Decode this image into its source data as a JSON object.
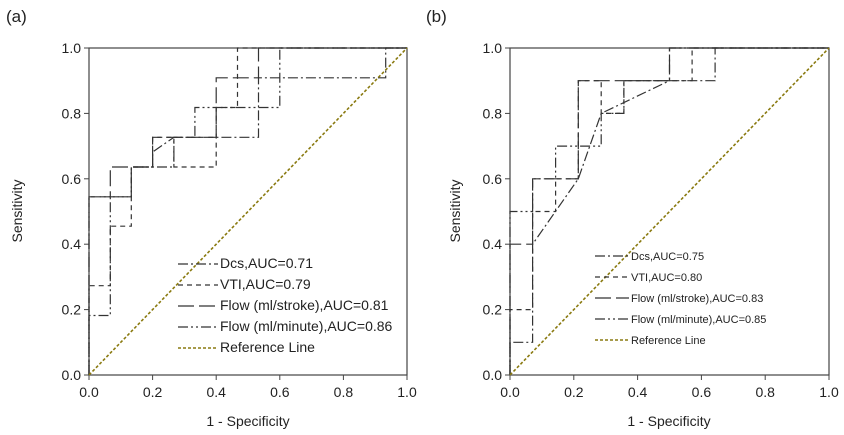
{
  "figure": {
    "panels": [
      {
        "label": "(a)",
        "xlabel": "1 - Specificity",
        "ylabel": "Sensitivity"
      },
      {
        "label": "(b)",
        "xlabel": "1 - Specificity",
        "ylabel": "Sensitivity"
      }
    ]
  },
  "chart_data": [
    {
      "type": "line",
      "panel": "(a)",
      "xlabel": "1 - Specificity",
      "ylabel": "Sensitivity",
      "xlim": [
        0,
        1
      ],
      "ylim": [
        0,
        1
      ],
      "xticks": [
        "0.0",
        "0.2",
        "0.4",
        "0.6",
        "0.8",
        "1.0"
      ],
      "yticks": [
        "0.0",
        "0.2",
        "0.4",
        "0.6",
        "0.8",
        "1.0"
      ],
      "grid": false,
      "legend_position": "bottom-right",
      "series": [
        {
          "name": "Dcs,AUC=0.71",
          "style": "dashdot",
          "color": "#333333",
          "x": [
            0,
            0,
            0.133,
            0.133,
            0.2,
            0.2,
            0.267,
            0.533,
            0.533,
            0.933,
            0.933,
            1
          ],
          "y": [
            0,
            0.545,
            0.545,
            0.636,
            0.636,
            0.682,
            0.727,
            0.727,
            0.909,
            0.909,
            1,
            1
          ]
        },
        {
          "name": "VTI,AUC=0.79",
          "style": "dashed-short",
          "color": "#333333",
          "x": [
            0,
            0,
            0.067,
            0.067,
            0.133,
            0.133,
            0.2,
            0.2,
            0.267,
            0.267,
            0.4,
            0.4,
            0.467,
            0.467,
            1
          ],
          "y": [
            0,
            0.273,
            0.273,
            0.455,
            0.455,
            0.636,
            0.636,
            0.727,
            0.727,
            0.636,
            0.636,
            0.818,
            0.818,
            1,
            1
          ]
        },
        {
          "name": "Flow (ml/stroke),AUC=0.81",
          "style": "dashed-long",
          "color": "#333333",
          "x": [
            0,
            0,
            0.067,
            0.067,
            0.2,
            0.2,
            0.267,
            0.267,
            0.4,
            0.4,
            0.533,
            0.533,
            1
          ],
          "y": [
            0,
            0.545,
            0.545,
            0.636,
            0.636,
            0.727,
            0.727,
            0.727,
            0.727,
            0.909,
            0.909,
            1,
            1
          ]
        },
        {
          "name": "Flow (ml/minute),AUC=0.86",
          "style": "dashdotdot",
          "color": "#333333",
          "x": [
            0,
            0,
            0.067,
            0.067,
            0.133,
            0.133,
            0.267,
            0.267,
            0.333,
            0.333,
            0.4,
            0.4,
            0.6,
            0.6,
            1
          ],
          "y": [
            0,
            0.182,
            0.182,
            0.545,
            0.545,
            0.636,
            0.636,
            0.727,
            0.727,
            0.818,
            0.818,
            0.818,
            0.818,
            1,
            1
          ]
        },
        {
          "name": "Reference Line",
          "style": "dotted",
          "color": "#8a7a10",
          "x": [
            0,
            1
          ],
          "y": [
            0,
            1
          ]
        }
      ]
    },
    {
      "type": "line",
      "panel": "(b)",
      "xlabel": "1 - Specificity",
      "ylabel": "Sensitivity",
      "xlim": [
        0,
        1
      ],
      "ylim": [
        0,
        1
      ],
      "xticks": [
        "0.0",
        "0.2",
        "0.4",
        "0.6",
        "0.8",
        "1.0"
      ],
      "yticks": [
        "0.0",
        "0.2",
        "0.4",
        "0.6",
        "0.8",
        "1.0"
      ],
      "grid": false,
      "legend_position": "bottom-right",
      "series": [
        {
          "name": "Dcs,AUC=0.75",
          "style": "dashdot",
          "color": "#333333",
          "x": [
            0,
            0,
            0.071,
            0.071,
            0.214,
            0.214,
            0.286,
            0.5,
            0.5,
            0.643,
            0.643,
            1
          ],
          "y": [
            0,
            0.1,
            0.1,
            0.4,
            0.6,
            0.6,
            0.8,
            0.9,
            0.9,
            0.9,
            1,
            1
          ]
        },
        {
          "name": "VTI,AUC=0.80",
          "style": "dashed-short",
          "color": "#333333",
          "x": [
            0,
            0,
            0.071,
            0.071,
            0.143,
            0.143,
            0.214,
            0.214,
            0.286,
            0.286,
            0.357,
            0.357,
            0.571,
            0.571,
            1
          ],
          "y": [
            0,
            0.2,
            0.2,
            0.5,
            0.5,
            0.6,
            0.6,
            0.9,
            0.9,
            0.8,
            0.8,
            0.9,
            0.9,
            1,
            1
          ]
        },
        {
          "name": "Flow (ml/stroke),AUC=0.83",
          "style": "dashed-long",
          "color": "#333333",
          "x": [
            0,
            0,
            0.071,
            0.071,
            0.214,
            0.214,
            0.286,
            0.286,
            0.5,
            0.5,
            1
          ],
          "y": [
            0,
            0.4,
            0.4,
            0.6,
            0.6,
            0.9,
            0.9,
            0.9,
            0.9,
            1,
            1
          ]
        },
        {
          "name": "Flow (ml/minute),AUC=0.85",
          "style": "dashdotdot",
          "color": "#333333",
          "x": [
            0,
            0,
            0.071,
            0.071,
            0.143,
            0.143,
            0.214,
            0.214,
            0.286,
            0.286,
            0.357,
            0.357,
            0.5,
            0.5,
            1
          ],
          "y": [
            0,
            0.5,
            0.5,
            0.6,
            0.6,
            0.7,
            0.7,
            0.7,
            0.7,
            0.8,
            0.8,
            0.9,
            0.9,
            1,
            1
          ]
        },
        {
          "name": "Reference Line",
          "style": "dotted",
          "color": "#8a7a10",
          "x": [
            0,
            1
          ],
          "y": [
            0,
            1
          ]
        }
      ]
    }
  ]
}
